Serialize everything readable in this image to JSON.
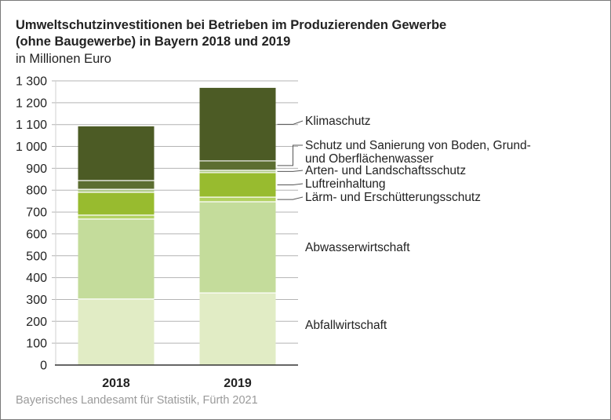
{
  "chart_data": {
    "type": "bar",
    "stacked": true,
    "title": "Umweltschutzinvestitionen bei Betrieben im Produzierenden Gewerbe (ohne Baugewerbe) in Bayern 2018 und 2019",
    "title_lines": [
      "Umweltschutzinvestitionen bei Betrieben im Produzierenden Gewerbe",
      "(ohne Baugewerbe) in Bayern 2018 und 2019"
    ],
    "subtitle": "in Millionen Euro",
    "xlabel": "",
    "ylabel": "in Millionen Euro",
    "ylim": [
      0,
      1300
    ],
    "yticks": [
      0,
      100,
      200,
      300,
      400,
      500,
      600,
      700,
      800,
      900,
      1000,
      1100,
      1200,
      1300
    ],
    "ytick_labels": [
      "0",
      "100",
      "200",
      "300",
      "400",
      "500",
      "600",
      "700",
      "800",
      "900",
      "1 000",
      "1 100",
      "1 200",
      "1 300"
    ],
    "grid": true,
    "legend_placement": "right",
    "categories": [
      "2018",
      "2019"
    ],
    "series": [
      {
        "name": "Abfallwirtschaft",
        "color": "#e1ecc5",
        "values": [
          302,
          330
        ]
      },
      {
        "name": "Abwasserwirtschaft",
        "color": "#c4dc9b",
        "values": [
          366,
          417
        ]
      },
      {
        "name": "Lärm- und Erschütterungsschutz",
        "color": "#b3d262",
        "values": [
          18,
          21
        ]
      },
      {
        "name": "Luftreinhaltung",
        "color": "#98bb2f",
        "values": [
          104,
          112
        ]
      },
      {
        "name": "Arten- und Landschaftsschutz",
        "color": "#b0c98a",
        "values": [
          14,
          11
        ]
      },
      {
        "name": "Schutz und Sanierung von Boden, Grund- und Oberflächenwasser",
        "color": "#5c6e31",
        "values": [
          40,
          43
        ]
      },
      {
        "name": "Klimaschutz",
        "color": "#4c5b25",
        "values": [
          248,
          334
        ]
      }
    ],
    "legend_labels": [
      {
        "series": 6,
        "lines": [
          "Klimaschutz"
        ]
      },
      {
        "series": 5,
        "lines": [
          "Schutz und Sanierung von Boden, Grund-",
          "und Oberflächenwasser"
        ]
      },
      {
        "series": 4,
        "lines": [
          "Arten- und Landschaftsschutz"
        ]
      },
      {
        "series": 3,
        "lines": [
          "Luftreinhaltung"
        ]
      },
      {
        "series": 2,
        "lines": [
          "Lärm- und Erschütterungsschutz"
        ]
      },
      {
        "series": 1,
        "lines": [
          "Abwasserwirtschaft"
        ]
      },
      {
        "series": 0,
        "lines": [
          "Abfallwirtschaft"
        ]
      }
    ]
  },
  "source": "Bayerisches Landesamt für Statistik, Fürth 2021"
}
